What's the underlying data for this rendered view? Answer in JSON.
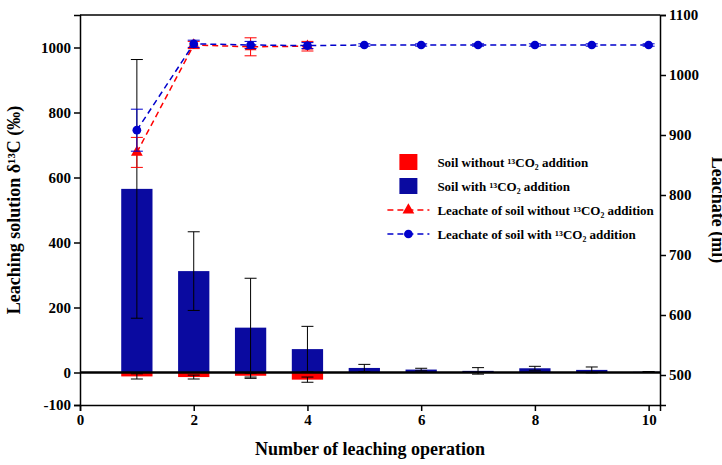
{
  "chart_data": {
    "type": "bar",
    "x_label": "Number of leaching operation",
    "y_label": "Leaching solution δ¹³C (‰)",
    "y2_label": "Leachate (ml)",
    "x": [
      1,
      2,
      3,
      4,
      5,
      6,
      7,
      8,
      9,
      10
    ],
    "xlim": [
      0,
      10.2
    ],
    "xticks": [
      0,
      2,
      4,
      6,
      8,
      10
    ],
    "ylim": [
      -100,
      1100
    ],
    "yticks": [
      -100,
      0,
      200,
      400,
      600,
      800,
      1000
    ],
    "y2lim": [
      450,
      1100
    ],
    "y2ticks": [
      500,
      600,
      700,
      800,
      900,
      1000,
      1100
    ],
    "grid": false,
    "legend": "right",
    "series": [
      {
        "name": "Soil without ¹³CO₂ addition",
        "type": "bar",
        "color": "#ff0000",
        "values": [
          -12,
          -14,
          -10,
          -22,
          null,
          null,
          null,
          null,
          null,
          null
        ],
        "error": [
          8,
          6,
          8,
          8,
          null,
          null,
          null,
          null,
          null,
          null
        ]
      },
      {
        "name": "Soil with ¹³CO₂ addition",
        "type": "bar",
        "color": "#0a0aa0",
        "values": [
          565,
          312,
          138,
          72,
          14,
          9,
          5,
          13,
          8,
          2
        ],
        "error": [
          398,
          121,
          152,
          70,
          11,
          4,
          10,
          6,
          9,
          1
        ]
      },
      {
        "name": "Leachate of soil without ¹³CO₂ addition",
        "type": "line",
        "axis": "y2",
        "color": "#ff0000",
        "marker": "triangle",
        "line_style": "dashed",
        "values": [
          871,
          1050,
          1047,
          1048,
          null,
          null,
          null,
          null,
          null,
          null
        ],
        "error": [
          25,
          6,
          15,
          8,
          null,
          null,
          null,
          null,
          null,
          null
        ]
      },
      {
        "name": "Leachate of soil with ¹³CO₂ addition",
        "type": "line",
        "axis": "y2",
        "color": "#0000cc",
        "marker": "circle",
        "line_style": "dashed",
        "values": [
          908,
          1052,
          1050,
          1049,
          1050,
          1050,
          1050,
          1050,
          1050,
          1050
        ],
        "error": [
          35,
          6,
          6,
          5,
          2,
          2,
          2,
          2,
          2,
          2
        ]
      }
    ]
  }
}
